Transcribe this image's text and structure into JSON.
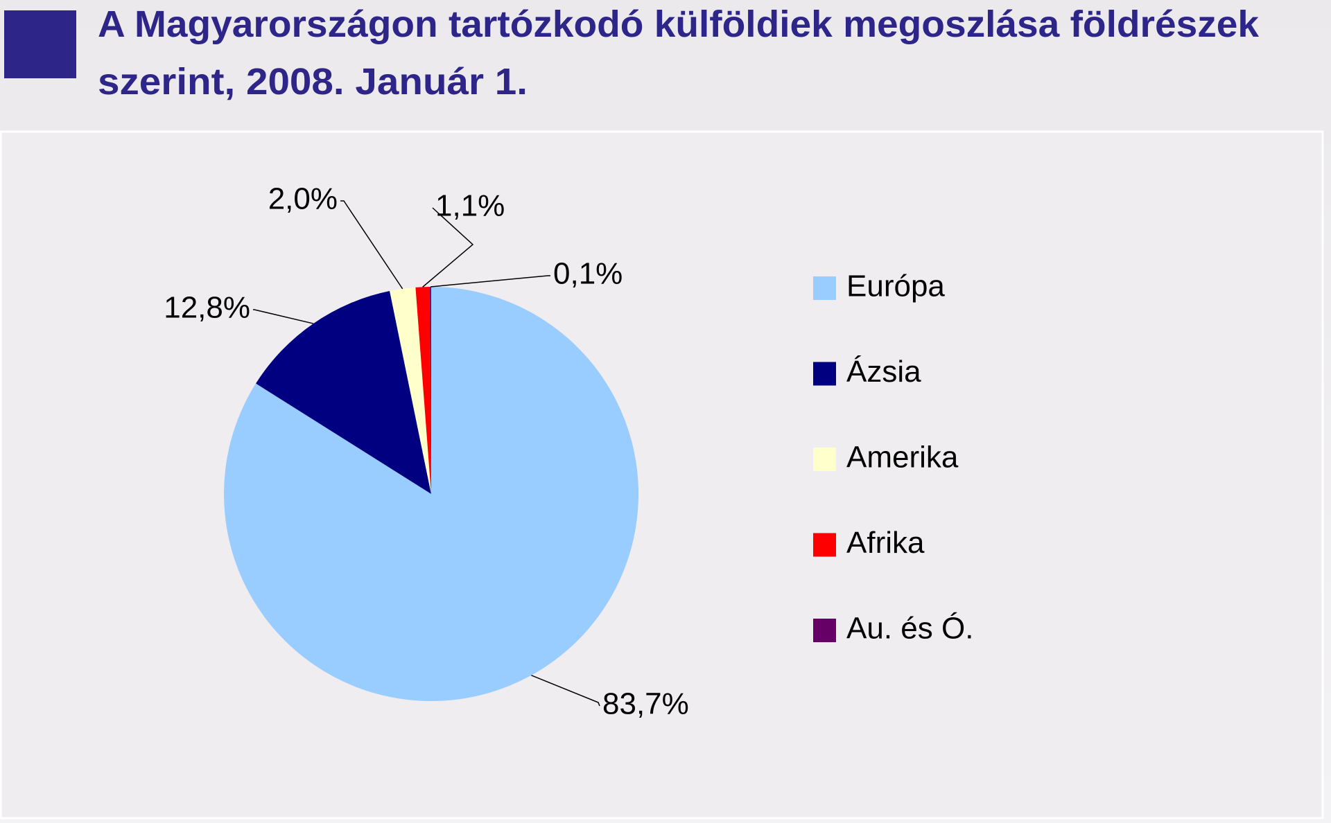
{
  "chart_data": {
    "type": "pie",
    "title_line1": "A Magyarországon tartózkodó külföldiek megoszlása földrészek",
    "title_line2": "szerint, 2008. Január 1.",
    "categories": [
      "Európa",
      "Ázsia",
      "Amerika",
      "Afrika",
      "Au. és Ó."
    ],
    "values": [
      83.7,
      12.8,
      2.0,
      1.1,
      0.1
    ],
    "value_labels": [
      "83,7%",
      "12,8%",
      "2,0%",
      "1,1%",
      "0,1%"
    ],
    "colors": [
      "#99ccff",
      "#000080",
      "#ffffcc",
      "#ff0000",
      "#660066"
    ],
    "legend": "right"
  }
}
